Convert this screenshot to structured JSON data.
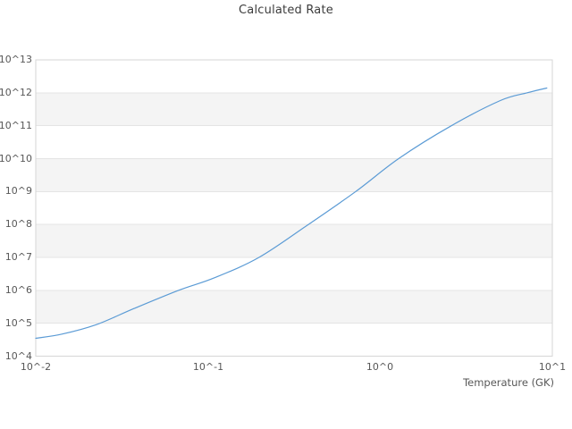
{
  "page": {
    "background": "#ffffff"
  },
  "chart_data": {
    "type": "line",
    "title": "Calculated Rate",
    "xlabel": "Temperature (GK)",
    "ylabel": "",
    "x_scale": "log",
    "y_scale": "log",
    "xlim": [
      0.01,
      10
    ],
    "ylim": [
      10000,
      10000000000000
    ],
    "x_tick_values": [
      0.01,
      0.1,
      1,
      10
    ],
    "x_tick_labels": [
      "10^-2",
      "10^-1",
      "10^0",
      "10^1"
    ],
    "y_tick_values": [
      10000,
      100000,
      1000000,
      10000000,
      100000000,
      1000000000,
      10000000000,
      100000000000,
      1000000000000,
      10000000000000
    ],
    "y_tick_labels": [
      "10^4",
      "10^5",
      "10^6",
      "10^7",
      "10^8",
      "10^9",
      "10^10",
      "10^11",
      "10^12",
      "10^13"
    ],
    "grid": "horizontal-only",
    "alternating_bands": true,
    "legend_position": "none",
    "series": [
      {
        "name": "Calculated Rate",
        "color": "#5b9bd5",
        "points": [
          [
            0.01,
            35000
          ],
          [
            0.0143,
            47000
          ],
          [
            0.0225,
            91000
          ],
          [
            0.0372,
            280000
          ],
          [
            0.0676,
            1000000
          ],
          [
            0.109,
            2400000
          ],
          [
            0.198,
            10000000
          ],
          [
            0.383,
            100000000
          ],
          [
            0.721,
            1000000000
          ],
          [
            1.28,
            10000000000
          ],
          [
            2.59,
            100000000000
          ],
          [
            4.99,
            580000000000
          ],
          [
            7.15,
            1000000000000
          ],
          [
            9.29,
            1400000000000
          ]
        ]
      }
    ]
  },
  "colors": {
    "band_fill": "#f4f4f4",
    "gridline": "#e4e4e4",
    "plot_border": "#d6d6d6",
    "tick_text": "#575757",
    "title_text": "#3c3c3c",
    "line": "#5b9bd5"
  }
}
